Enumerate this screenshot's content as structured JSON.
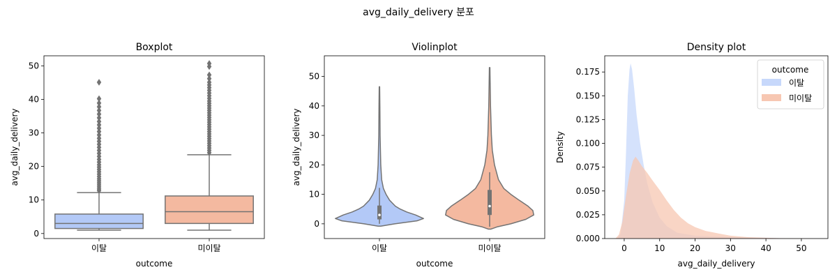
{
  "suptitle": "avg_daily_delivery 분포",
  "colors": {
    "churn": "#b3c9f7",
    "non_churn": "#f4b9a0",
    "churn_kde": "#c7d8fb",
    "non_churn_kde": "#f7c7b2",
    "line": "#737373"
  },
  "chart_data": [
    {
      "type": "box",
      "title": "Boxplot",
      "xlabel": "outcome",
      "ylabel": "avg_daily_delivery",
      "categories": [
        "이탈",
        "미이탈"
      ],
      "ylim": [
        -1.5,
        53
      ],
      "yticks": [
        0,
        10,
        20,
        30,
        40,
        50
      ],
      "series": [
        {
          "category": "이탈",
          "min": 1,
          "q1": 1.5,
          "median": 3,
          "q3": 5.8,
          "max": 12.2,
          "outliers": [
            12.8,
            13.3,
            13.9,
            14.5,
            15.1,
            15.7,
            16.3,
            17,
            17.7,
            18.4,
            19.1,
            19.8,
            20.5,
            21.3,
            22.1,
            23,
            23.9,
            24.8,
            25.7,
            26.6,
            27.5,
            28.4,
            29.4,
            30.4,
            31.4,
            32.4,
            33.4,
            34.5,
            35.6,
            36.7,
            37.8,
            38.9,
            40.2,
            45.1
          ]
        },
        {
          "category": "미이탈",
          "min": 1,
          "q1": 3,
          "median": 6.5,
          "q3": 11.2,
          "max": 23.5,
          "outliers": [
            24.1,
            24.8,
            25.5,
            26.2,
            26.9,
            27.6,
            28.3,
            29,
            29.7,
            30.4,
            31.1,
            31.8,
            32.5,
            33.2,
            33.9,
            34.6,
            35.3,
            36,
            36.7,
            37.4,
            38.1,
            38.8,
            39.5,
            40.3,
            41.1,
            41.9,
            42.7,
            43.5,
            44.3,
            45.1,
            46.2,
            47.3,
            49.8,
            50.7
          ]
        }
      ]
    },
    {
      "type": "violin",
      "title": "Violinplot",
      "xlabel": "outcome",
      "ylabel": "avg_daily_delivery",
      "categories": [
        "이탈",
        "미이탈"
      ],
      "ylim": [
        -5,
        57
      ],
      "yticks": [
        0,
        10,
        20,
        30,
        40,
        50
      ],
      "series": [
        {
          "category": "이탈",
          "ymin": -0.8,
          "ymax": 46.5,
          "q1": 1.5,
          "median": 3,
          "q3": 6.2,
          "profile": [
            [
              -0.8,
              0.03
            ],
            [
              0,
              0.35
            ],
            [
              1,
              0.85
            ],
            [
              1.8,
              1.0
            ],
            [
              3,
              0.82
            ],
            [
              4,
              0.62
            ],
            [
              5,
              0.47
            ],
            [
              6,
              0.36
            ],
            [
              8,
              0.23
            ],
            [
              10,
              0.15
            ],
            [
              12,
              0.09
            ],
            [
              15,
              0.05
            ],
            [
              20,
              0.03
            ],
            [
              30,
              0.015
            ],
            [
              40,
              0.01
            ],
            [
              46.5,
              0.005
            ]
          ]
        },
        {
          "category": "미이탈",
          "ymin": -1.8,
          "ymax": 53,
          "q1": 3,
          "median": 6,
          "q3": 11.5,
          "profile": [
            [
              -1.8,
              0.03
            ],
            [
              -1,
              0.18
            ],
            [
              0,
              0.48
            ],
            [
              1.5,
              0.82
            ],
            [
              3,
              1.0
            ],
            [
              4.5,
              0.98
            ],
            [
              6,
              0.87
            ],
            [
              8,
              0.67
            ],
            [
              10,
              0.48
            ],
            [
              12,
              0.32
            ],
            [
              15,
              0.2
            ],
            [
              20,
              0.11
            ],
            [
              25,
              0.06
            ],
            [
              30,
              0.04
            ],
            [
              40,
              0.02
            ],
            [
              53,
              0.006
            ]
          ]
        }
      ]
    },
    {
      "type": "area",
      "title": "Density plot",
      "xlabel": "avg_daily_delivery",
      "ylabel": "Density",
      "xlim": [
        -5.5,
        57.5
      ],
      "ylim": [
        0,
        0.192
      ],
      "xticks": [
        0,
        10,
        20,
        30,
        40,
        50
      ],
      "yticks": [
        0.0,
        0.025,
        0.05,
        0.075,
        0.1,
        0.125,
        0.15,
        0.175
      ],
      "ytick_labels": [
        "0.000",
        "0.025",
        "0.050",
        "0.075",
        "0.100",
        "0.125",
        "0.150",
        "0.175"
      ],
      "legend": {
        "title": "outcome",
        "position": "top-right",
        "entries": [
          "이탈",
          "미이탈"
        ]
      },
      "series": [
        {
          "name": "이탈",
          "points": [
            [
              -2,
              0
            ],
            [
              -1,
              0.005
            ],
            [
              0,
              0.04
            ],
            [
              0.5,
              0.09
            ],
            [
              1,
              0.15
            ],
            [
              1.5,
              0.178
            ],
            [
              1.8,
              0.184
            ],
            [
              2.2,
              0.178
            ],
            [
              2.8,
              0.158
            ],
            [
              3.5,
              0.13
            ],
            [
              4.5,
              0.1
            ],
            [
              5.5,
              0.077
            ],
            [
              6.5,
              0.058
            ],
            [
              8,
              0.038
            ],
            [
              10,
              0.022
            ],
            [
              12,
              0.013
            ],
            [
              15,
              0.006
            ],
            [
              20,
              0.003
            ],
            [
              30,
              0.0015
            ],
            [
              40,
              0.0008
            ],
            [
              47,
              0
            ]
          ]
        },
        {
          "name": "미이탈",
          "points": [
            [
              -2.5,
              0
            ],
            [
              -1.5,
              0.004
            ],
            [
              -0.5,
              0.018
            ],
            [
              0.5,
              0.045
            ],
            [
              1.5,
              0.068
            ],
            [
              2.5,
              0.082
            ],
            [
              3.2,
              0.086
            ],
            [
              4,
              0.082
            ],
            [
              5,
              0.076
            ],
            [
              6.5,
              0.069
            ],
            [
              8,
              0.061
            ],
            [
              10,
              0.051
            ],
            [
              12,
              0.04
            ],
            [
              14,
              0.03
            ],
            [
              16,
              0.022
            ],
            [
              18,
              0.016
            ],
            [
              20,
              0.012
            ],
            [
              23,
              0.008
            ],
            [
              27,
              0.005
            ],
            [
              30,
              0.003
            ],
            [
              35,
              0.0015
            ],
            [
              40,
              0.0008
            ],
            [
              45,
              0.0003
            ],
            [
              53,
              0
            ]
          ]
        }
      ]
    }
  ]
}
